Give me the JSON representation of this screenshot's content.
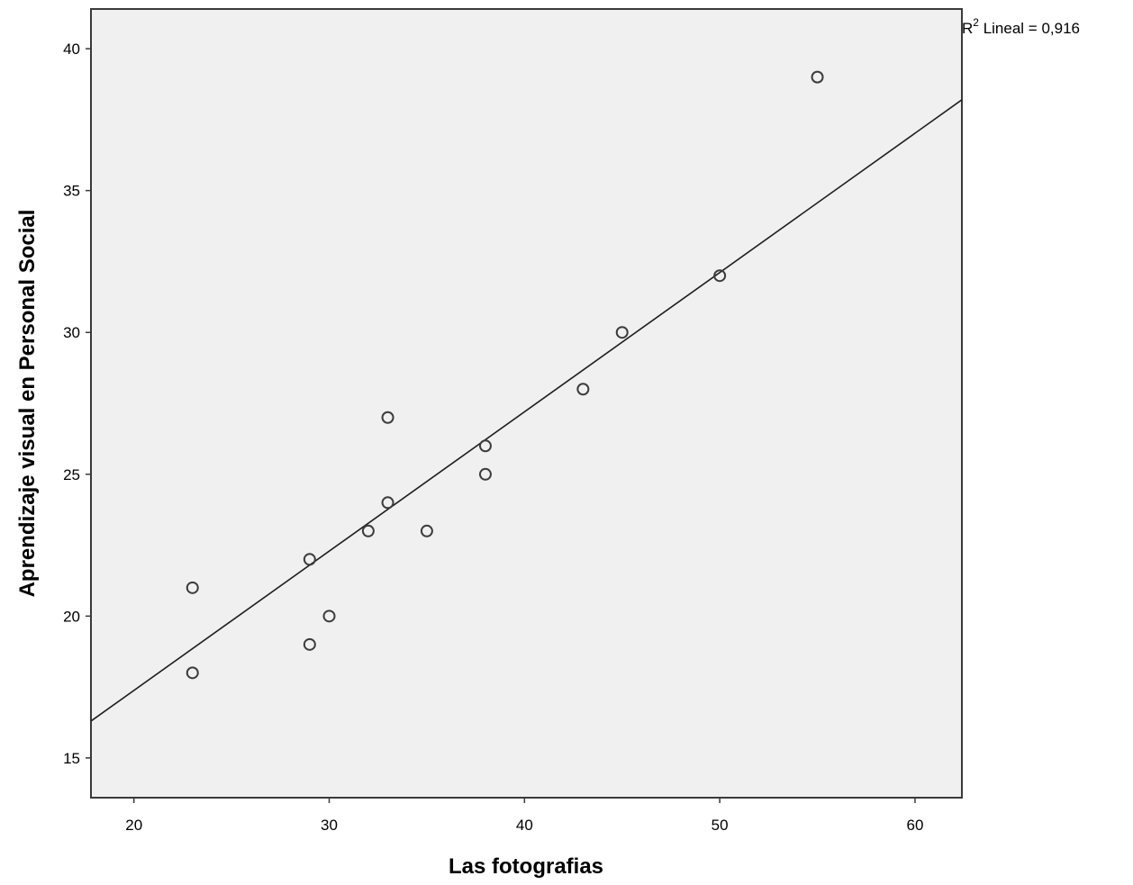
{
  "chart_data": {
    "type": "scatter",
    "title": "",
    "xlabel": "Las fotografias",
    "ylabel": "Aprendizaje visual en Personal Social",
    "xlim": [
      17.8,
      62.4
    ],
    "ylim": [
      13.6,
      41.4
    ],
    "xticks": [
      20,
      30,
      40,
      50,
      60
    ],
    "yticks": [
      15,
      20,
      25,
      30,
      35,
      40
    ],
    "grid": false,
    "series": [
      {
        "points": [
          {
            "x": 23,
            "y": 21
          },
          {
            "x": 23,
            "y": 18
          },
          {
            "x": 29,
            "y": 22
          },
          {
            "x": 29,
            "y": 19
          },
          {
            "x": 30,
            "y": 20
          },
          {
            "x": 32,
            "y": 23
          },
          {
            "x": 33,
            "y": 27
          },
          {
            "x": 33,
            "y": 24
          },
          {
            "x": 35,
            "y": 23
          },
          {
            "x": 38,
            "y": 26
          },
          {
            "x": 38,
            "y": 25
          },
          {
            "x": 43,
            "y": 28
          },
          {
            "x": 45,
            "y": 30
          },
          {
            "x": 50,
            "y": 32
          },
          {
            "x": 55,
            "y": 39
          }
        ]
      }
    ],
    "fit_line": {
      "type": "linear",
      "start": {
        "x": 17.8,
        "y": 16.3
      },
      "end": {
        "x": 62.4,
        "y": 38.2
      }
    },
    "annotations": [
      {
        "base": "R",
        "superscript": "2",
        "text": " Lineal = 0,916"
      }
    ],
    "colors": {
      "plot_background": "#f0f0f0",
      "marker_stroke": "#3c3c3c",
      "line": "#1e1e1e",
      "axis": "#3a3a3a"
    }
  }
}
